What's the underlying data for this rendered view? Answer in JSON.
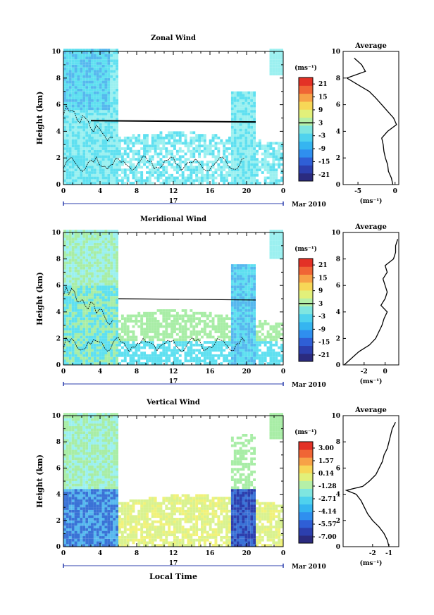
{
  "colors": {
    "cb": [
      "#2b2b7f",
      "#2c3fae",
      "#2f5fd6",
      "#2f8fef",
      "#35b5f0",
      "#4fd2ee",
      "#7fe6e0",
      "#b5f0a8",
      "#e2f07a",
      "#f7d757",
      "#f7a247",
      "#f06535",
      "#e33126"
    ],
    "cyan": "#5fe0f0",
    "cyanlight": "#9bf0f0",
    "sky": "#56b8ee",
    "blue": "#3a72d6",
    "green": "#a8eda6",
    "lime": "#d9f290",
    "yellow": "#f1f27a",
    "deep": "#2c3fae"
  },
  "chart_data": [
    {
      "type": "heatmap",
      "title": "Zonal Wind",
      "ylabel": "Height (km)",
      "xlim": [
        0,
        24
      ],
      "ylim": [
        0,
        10
      ],
      "xticks": [
        "0",
        "4",
        "8",
        "12",
        "16",
        "20",
        "0"
      ],
      "yticks": [
        "0",
        "2",
        "4",
        "6",
        "8",
        "10"
      ],
      "date_label": "17",
      "month_label": "Mar 2010",
      "colorbar_unit": "(ms⁻¹)",
      "colorbar_ticks": [
        "21",
        "15",
        "9",
        "3",
        "-3",
        "-9",
        "-15",
        "-21"
      ],
      "average": {
        "title": "Average",
        "xlabel": "(ms⁻¹)",
        "xlim": [
          -7,
          0.5
        ],
        "xticks": [
          "-5",
          "0"
        ],
        "height": [
          0,
          0.5,
          1,
          1.5,
          2,
          2.5,
          3,
          3.5,
          4,
          4.5,
          5,
          5.5,
          6,
          6.5,
          7,
          7.5,
          8,
          8.5,
          9,
          9.5
        ],
        "values": [
          -0.3,
          -0.5,
          -0.9,
          -1.0,
          -1.3,
          -1.5,
          -1.6,
          -1.8,
          -1.0,
          0.2,
          -0.2,
          -1.0,
          -1.8,
          -2.6,
          -3.5,
          -5.0,
          -6.5,
          -4.0,
          -4.5,
          -5.5
        ]
      }
    },
    {
      "type": "heatmap",
      "title": "Meridional Wind",
      "ylabel": "Height (km)",
      "xlim": [
        0,
        24
      ],
      "ylim": [
        0,
        10
      ],
      "xticks": [
        "0",
        "4",
        "8",
        "12",
        "16",
        "20",
        "0"
      ],
      "yticks": [
        "0",
        "2",
        "4",
        "6",
        "8",
        "10"
      ],
      "date_label": "17",
      "month_label": "Mar 2010",
      "colorbar_unit": "(ms⁻¹)",
      "colorbar_ticks": [
        "21",
        "15",
        "9",
        "3",
        "-3",
        "-9",
        "-15",
        "-21"
      ],
      "average": {
        "title": "Average",
        "xlabel": "(ms⁻¹)",
        "xlim": [
          -4,
          1.3
        ],
        "xticks": [
          "-2",
          "0"
        ],
        "height": [
          0,
          0.5,
          1,
          1.5,
          2,
          2.5,
          3,
          3.5,
          4,
          4.5,
          5,
          5.5,
          6,
          6.5,
          7,
          7.5,
          8,
          8.5,
          9,
          9.5
        ],
        "values": [
          -3.9,
          -3.2,
          -2.5,
          -1.5,
          -0.9,
          -0.6,
          -0.3,
          -0.1,
          0.2,
          -0.4,
          0.0,
          0.2,
          0.0,
          -0.2,
          0.2,
          0.0,
          0.8,
          1.0,
          1.0,
          1.2
        ]
      }
    },
    {
      "type": "heatmap",
      "title": "Vertical Wind",
      "ylabel": "Height (km)",
      "xlabel": "Local Time",
      "xlim": [
        0,
        24
      ],
      "ylim": [
        0,
        10
      ],
      "xticks": [
        "0",
        "4",
        "8",
        "12",
        "16",
        "20",
        "0"
      ],
      "yticks": [
        "0",
        "2",
        "4",
        "6",
        "8",
        "10"
      ],
      "date_label": "17",
      "month_label": "Mar 2010",
      "colorbar_unit": "(ms⁻¹)",
      "colorbar_ticks": [
        "3.00",
        "1.57",
        "0.14",
        "-1.28",
        "-2.71",
        "-4.14",
        "-5.57",
        "-7.00"
      ],
      "average": {
        "title": "Average",
        "xlabel": "(ms⁻¹)",
        "xlim": [
          -3.8,
          -0.4
        ],
        "xticks": [
          "-2",
          "-1"
        ],
        "height": [
          0,
          0.5,
          1,
          1.5,
          2,
          2.5,
          3,
          3.5,
          4,
          4.3,
          4.6,
          5,
          5.5,
          6,
          6.5,
          7,
          7.5,
          8,
          8.5,
          9,
          9.5
        ],
        "values": [
          -1.0,
          -1.1,
          -1.3,
          -1.6,
          -2.0,
          -2.3,
          -2.5,
          -2.7,
          -3.0,
          -3.6,
          -2.6,
          -2.2,
          -1.8,
          -1.6,
          -1.4,
          -1.3,
          -1.1,
          -1.0,
          -0.9,
          -0.8,
          -0.6
        ]
      }
    }
  ]
}
